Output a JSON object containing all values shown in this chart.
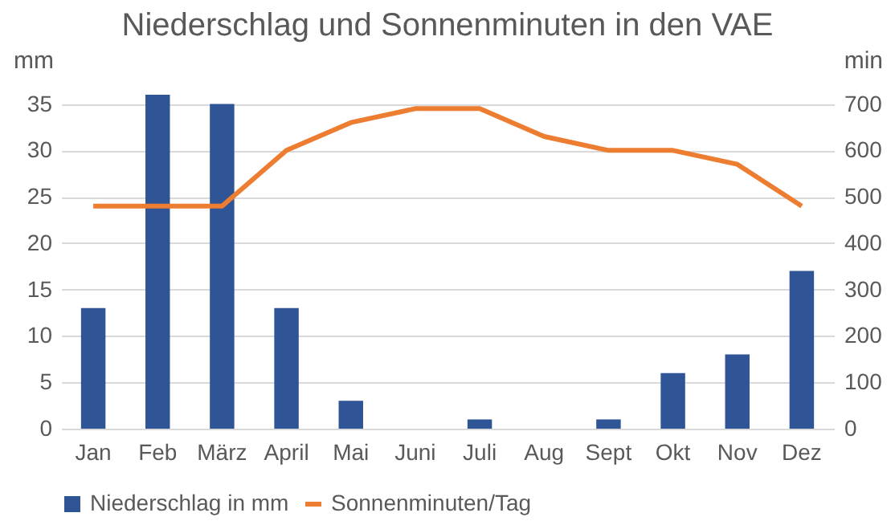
{
  "chart_data": {
    "type": "bar",
    "title": "Niederschlag und Sonnenminuten in den VAE",
    "categories": [
      "Jan",
      "Feb",
      "März",
      "April",
      "Mai",
      "Juni",
      "Juli",
      "Aug",
      "Sept",
      "Okt",
      "Nov",
      "Dez"
    ],
    "series": [
      {
        "name": "Niederschlag in mm",
        "color": "#2f5597",
        "values": [
          13,
          36,
          35,
          13,
          3,
          0,
          1,
          0,
          1,
          6,
          8,
          17
        ]
      },
      {
        "name": "Sonnenminuten/Tag",
        "type": "line",
        "axis": "y2",
        "color": "#ed7d31",
        "values": [
          480,
          480,
          480,
          600,
          660,
          690,
          690,
          630,
          600,
          600,
          570,
          480
        ]
      }
    ],
    "ylabel": "mm",
    "y2label": "min",
    "ylim": [
      0,
      36
    ],
    "yticks": [
      0,
      5,
      10,
      15,
      20,
      25,
      30,
      35
    ],
    "y2lim": [
      0,
      720
    ],
    "y2ticks": [
      0,
      100,
      200,
      300,
      400,
      500,
      600,
      700
    ],
    "grid": "y",
    "legend": "bottom",
    "marker": "none",
    "line_style": "solid"
  }
}
